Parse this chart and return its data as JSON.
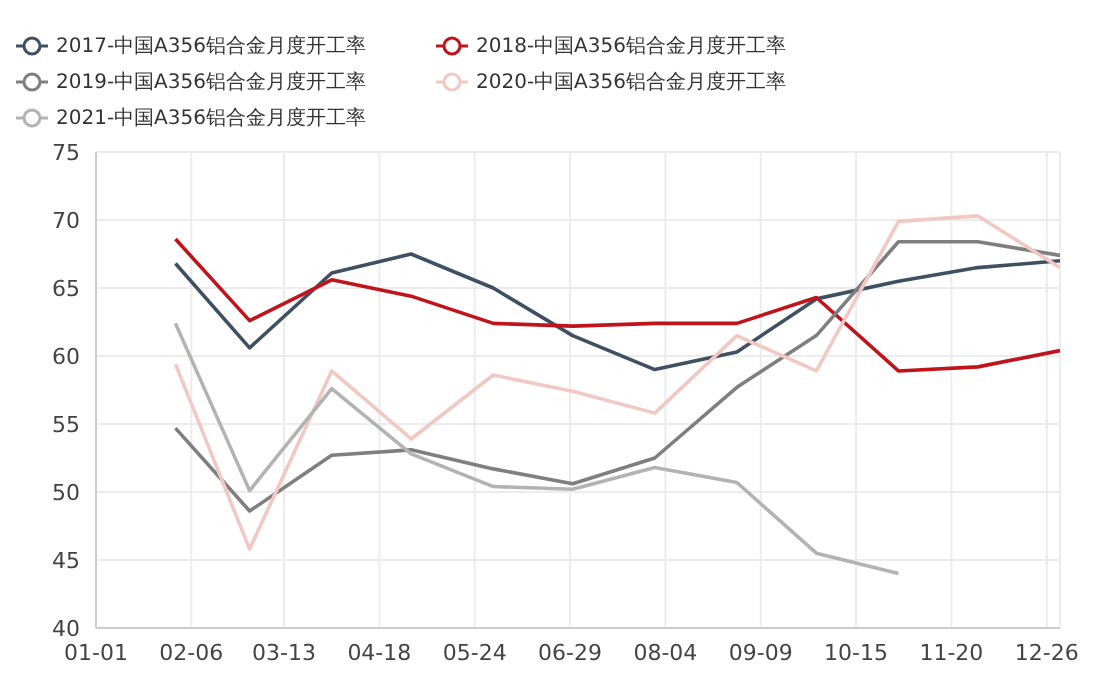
{
  "chart_data": {
    "type": "line",
    "x": [
      "--01-31",
      "--02-28",
      "--03-31",
      "--04-30",
      "--05-31",
      "--06-30",
      "--07-31",
      "--08-31",
      "--09-30",
      "--10-31",
      "--11-30",
      "--12-31"
    ],
    "xlim": [
      "--01-01",
      "--12-31"
    ],
    "xticks": [
      {
        "value": "--01-01",
        "label": "01-01"
      },
      {
        "value": "--02-06",
        "label": "02-06"
      },
      {
        "value": "--03-13",
        "label": "03-13"
      },
      {
        "value": "--04-18",
        "label": "04-18"
      },
      {
        "value": "--05-24",
        "label": "05-24"
      },
      {
        "value": "--06-29",
        "label": "06-29"
      },
      {
        "value": "--08-04",
        "label": "08-04"
      },
      {
        "value": "--09-09",
        "label": "09-09"
      },
      {
        "value": "--10-15",
        "label": "10-15"
      },
      {
        "value": "--11-20",
        "label": "11-20"
      },
      {
        "value": "--12-26",
        "label": "12-26"
      }
    ],
    "ylim": [
      40,
      75
    ],
    "yticks": [
      40,
      45,
      50,
      55,
      60,
      65,
      70,
      75
    ],
    "grid": true,
    "legend": "top left",
    "series": [
      {
        "name": "2017-中国A356铝合金月度开工率",
        "color": "#3e5061",
        "values": [
          66.8,
          60.6,
          66.1,
          67.5,
          65.0,
          61.5,
          59.0,
          60.3,
          64.2,
          65.5,
          66.5,
          67.0
        ]
      },
      {
        "name": "2018-中国A356铝合金月度开工率",
        "color": "#c0141c",
        "values": [
          68.6,
          62.6,
          65.6,
          64.4,
          62.4,
          62.2,
          62.4,
          62.4,
          64.3,
          58.9,
          59.2,
          60.4
        ]
      },
      {
        "name": "2019-中国A356铝合金月度开工率",
        "color": "#7f7f7f",
        "values": [
          54.7,
          48.6,
          52.7,
          53.1,
          51.7,
          50.6,
          52.5,
          57.7,
          61.5,
          68.4,
          68.4,
          67.4
        ]
      },
      {
        "name": "2020-中国A356铝合金月度开工率",
        "color": "#f0c9c4",
        "values": [
          59.4,
          45.8,
          58.9,
          53.9,
          58.6,
          57.4,
          55.8,
          61.5,
          58.9,
          69.9,
          70.3,
          66.5
        ]
      },
      {
        "name": "2021-中国A356铝合金月度开工率",
        "color": "#b3b3b3",
        "values": [
          62.4,
          50.1,
          57.6,
          52.8,
          50.4,
          50.2,
          51.8,
          50.7,
          45.5,
          44.0,
          null,
          null
        ]
      }
    ]
  }
}
